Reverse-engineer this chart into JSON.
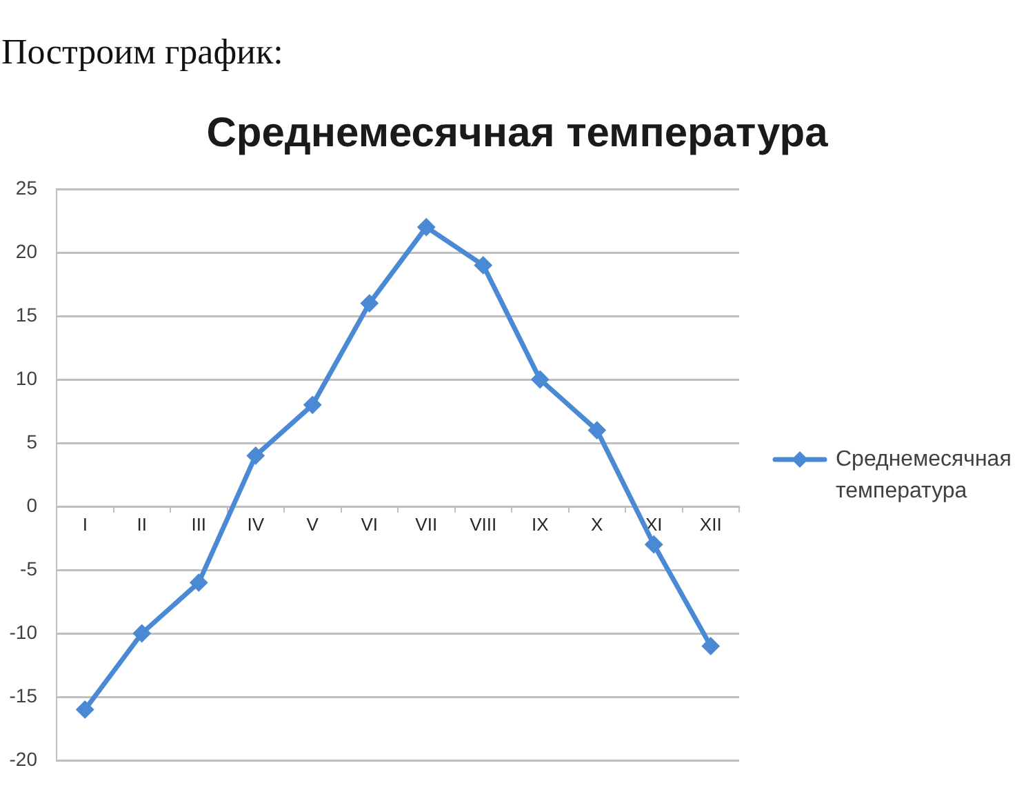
{
  "chart_data": {
    "type": "line",
    "title": "Среднемесячная температура",
    "annotations": [
      "Построим график:"
    ],
    "categories": [
      "I",
      "II",
      "III",
      "IV",
      "V",
      "VI",
      "VII",
      "VIII",
      "IX",
      "X",
      "XI",
      "XII"
    ],
    "series": [
      {
        "name": "Среднемесячная температура",
        "color": "#4a89d4",
        "values": [
          -16,
          -10,
          -6,
          4,
          8,
          16,
          22,
          19,
          10,
          6,
          -3,
          -11
        ]
      }
    ],
    "ylim": [
      -20,
      25
    ],
    "yticks": [
      -20,
      -15,
      -10,
      -5,
      0,
      5,
      10,
      15,
      20,
      25
    ],
    "grid": "y",
    "legend": "right",
    "marker": "diamond",
    "line_style": "solid"
  }
}
